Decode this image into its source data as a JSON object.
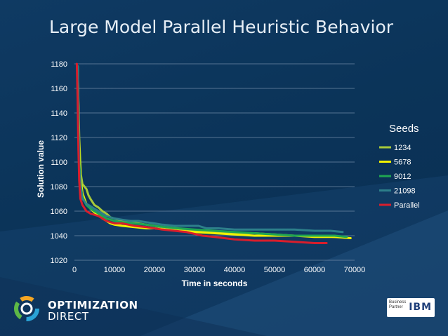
{
  "slide": {
    "title": "Large Model Parallel Heuristic Behavior"
  },
  "footer": {
    "brand_line1": "OPTIMIZATION",
    "brand_line2": "DIRECT",
    "partner_text": "Business Partner",
    "partner_brand": "IBM"
  },
  "colors": {
    "s1234": "#a7c93a",
    "s5678": "#f2f200",
    "s9012": "#1fa552",
    "s21098": "#2d7f8a",
    "parallel": "#d81e2c"
  },
  "chart_data": {
    "type": "line",
    "title": "",
    "xlabel": "Time in seconds",
    "ylabel": "Solution value",
    "xlim": [
      0,
      70000
    ],
    "ylim": [
      1020,
      1180
    ],
    "xticks": [
      0,
      10000,
      20000,
      30000,
      40000,
      50000,
      60000,
      70000
    ],
    "xtick_labels": [
      "0",
      "10000",
      "20000",
      "30000",
      "40000",
      "50000",
      "60000",
      "70000"
    ],
    "yticks": [
      1020,
      1040,
      1060,
      1080,
      1100,
      1120,
      1140,
      1160,
      1180
    ],
    "ytick_labels": [
      "1020",
      "1040",
      "1060",
      "1080",
      "1100",
      "1120",
      "1140",
      "1160",
      "1180"
    ],
    "grid": true,
    "legend_title": "Seeds",
    "legend_position": "right",
    "series": [
      {
        "name": "1234",
        "color": "#a7c93a",
        "points": [
          [
            800,
            1178
          ],
          [
            1200,
            1120
          ],
          [
            1600,
            1090
          ],
          [
            2000,
            1082
          ],
          [
            2500,
            1080
          ],
          [
            3000,
            1078
          ],
          [
            3500,
            1073
          ],
          [
            4000,
            1070
          ],
          [
            5000,
            1065
          ],
          [
            6000,
            1063
          ],
          [
            7000,
            1060
          ],
          [
            8000,
            1058
          ],
          [
            9000,
            1055
          ],
          [
            10000,
            1054
          ],
          [
            12000,
            1052
          ],
          [
            14000,
            1051
          ],
          [
            16000,
            1050
          ],
          [
            18000,
            1049
          ],
          [
            20000,
            1048
          ],
          [
            22000,
            1047
          ],
          [
            25000,
            1046
          ],
          [
            28000,
            1045
          ],
          [
            30000,
            1044
          ],
          [
            35000,
            1043
          ],
          [
            40000,
            1042
          ],
          [
            45000,
            1042
          ],
          [
            50000,
            1041
          ],
          [
            55000,
            1040
          ],
          [
            60000,
            1040
          ],
          [
            65000,
            1039
          ],
          [
            68000,
            1039
          ]
        ]
      },
      {
        "name": "5678",
        "color": "#f2f200",
        "points": [
          [
            800,
            1178
          ],
          [
            1200,
            1110
          ],
          [
            1600,
            1085
          ],
          [
            2000,
            1075
          ],
          [
            2500,
            1070
          ],
          [
            3000,
            1066
          ],
          [
            4000,
            1062
          ],
          [
            5000,
            1059
          ],
          [
            6000,
            1057
          ],
          [
            7000,
            1054
          ],
          [
            8000,
            1052
          ],
          [
            9000,
            1050
          ],
          [
            10000,
            1049
          ],
          [
            12000,
            1048
          ],
          [
            15000,
            1047
          ],
          [
            18000,
            1046
          ],
          [
            20000,
            1046
          ],
          [
            23000,
            1045
          ],
          [
            26000,
            1044
          ],
          [
            30000,
            1043
          ],
          [
            35000,
            1042
          ],
          [
            40000,
            1041
          ],
          [
            45000,
            1040
          ],
          [
            50000,
            1040
          ],
          [
            55000,
            1040
          ],
          [
            60000,
            1039
          ],
          [
            65000,
            1039
          ],
          [
            69000,
            1038
          ]
        ]
      },
      {
        "name": "9012",
        "color": "#1fa552",
        "points": [
          [
            800,
            1178
          ],
          [
            1200,
            1100
          ],
          [
            1600,
            1080
          ],
          [
            2000,
            1072
          ],
          [
            2500,
            1068
          ],
          [
            3000,
            1065
          ],
          [
            4000,
            1062
          ],
          [
            5000,
            1060
          ],
          [
            6000,
            1058
          ],
          [
            7000,
            1056
          ],
          [
            8000,
            1054
          ],
          [
            10000,
            1052
          ],
          [
            12000,
            1051
          ],
          [
            15000,
            1050
          ],
          [
            18000,
            1049
          ],
          [
            20000,
            1048
          ],
          [
            23000,
            1047
          ],
          [
            26000,
            1046
          ],
          [
            30000,
            1045
          ],
          [
            35000,
            1044
          ],
          [
            40000,
            1043
          ],
          [
            45000,
            1042
          ],
          [
            50000,
            1041
          ],
          [
            55000,
            1040
          ],
          [
            60000,
            1040
          ],
          [
            65000,
            1040
          ],
          [
            68000,
            1039
          ]
        ]
      },
      {
        "name": "21098",
        "color": "#2d7f8a",
        "points": [
          [
            800,
            1178
          ],
          [
            1200,
            1095
          ],
          [
            1600,
            1078
          ],
          [
            2000,
            1070
          ],
          [
            2500,
            1068
          ],
          [
            3000,
            1066
          ],
          [
            4000,
            1064
          ],
          [
            5000,
            1062
          ],
          [
            6000,
            1060
          ],
          [
            7000,
            1058
          ],
          [
            8000,
            1056
          ],
          [
            10000,
            1054
          ],
          [
            12000,
            1053
          ],
          [
            14000,
            1052
          ],
          [
            16000,
            1052
          ],
          [
            18000,
            1051
          ],
          [
            20000,
            1050
          ],
          [
            22000,
            1049
          ],
          [
            25000,
            1048
          ],
          [
            28000,
            1048
          ],
          [
            31000,
            1048
          ],
          [
            33000,
            1046
          ],
          [
            36000,
            1046
          ],
          [
            40000,
            1045
          ],
          [
            45000,
            1045
          ],
          [
            50000,
            1045
          ],
          [
            55000,
            1045
          ],
          [
            60000,
            1044
          ],
          [
            64000,
            1044
          ],
          [
            67000,
            1043
          ]
        ]
      },
      {
        "name": "Parallel",
        "color": "#d81e2c",
        "points": [
          [
            600,
            1180
          ],
          [
            800,
            1150
          ],
          [
            1000,
            1110
          ],
          [
            1200,
            1085
          ],
          [
            1500,
            1070
          ],
          [
            2000,
            1065
          ],
          [
            3000,
            1060
          ],
          [
            4000,
            1058
          ],
          [
            6000,
            1056
          ],
          [
            8000,
            1052
          ],
          [
            10000,
            1050
          ],
          [
            12000,
            1050
          ],
          [
            15000,
            1048
          ],
          [
            18000,
            1047
          ],
          [
            20000,
            1046
          ],
          [
            22000,
            1045
          ],
          [
            25000,
            1044
          ],
          [
            28000,
            1043
          ],
          [
            32000,
            1040
          ],
          [
            35000,
            1039
          ],
          [
            40000,
            1037
          ],
          [
            45000,
            1036
          ],
          [
            50000,
            1036
          ],
          [
            55000,
            1035
          ],
          [
            60000,
            1034
          ],
          [
            63000,
            1034
          ]
        ]
      }
    ]
  }
}
